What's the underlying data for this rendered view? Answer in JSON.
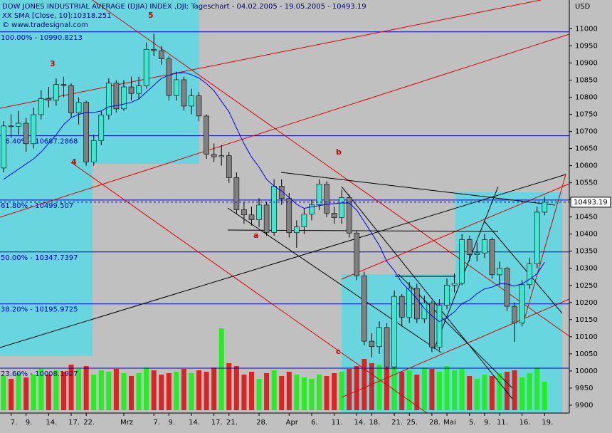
{
  "chart_data": {
    "type": "candlestick",
    "title": "DOW JONES INDUSTRIAL AVERAGE (DJIA) INDEX ,DJI; Tageschart - 04.02.2005 - 19.05.2005 - 10493.19",
    "credit": "© www.tradesignal.com",
    "unit": "USD",
    "annotations": [
      "5",
      "3",
      "4",
      "a",
      "b",
      "c"
    ],
    "categories": [
      null,
      "7.",
      null,
      "9.",
      null,
      null,
      "14.",
      null,
      null,
      "17.",
      null,
      "22.",
      null,
      null,
      null,
      null,
      "Mrz",
      null,
      null,
      null,
      "7.",
      null,
      "9.",
      null,
      null,
      "14.",
      null,
      null,
      "17.",
      null,
      "21.",
      null,
      null,
      null,
      "28.",
      null,
      null,
      null,
      "Apr",
      null,
      null,
      "6.",
      null,
      null,
      "11.",
      null,
      null,
      "14.",
      null,
      "18.",
      null,
      null,
      "21.",
      null,
      "25.",
      null,
      null,
      "28.",
      null,
      "Mai",
      null,
      null,
      "5.",
      null,
      "9.",
      null,
      "11.",
      null,
      null,
      "16.",
      null,
      null,
      "19."
    ],
    "open": [
      10593,
      10716,
      10715,
      10724,
      10664,
      10749,
      10796,
      10791,
      10837,
      10834,
      10754,
      10785,
      10611,
      10673,
      10748,
      10841,
      10766,
      10830,
      10811,
      10833,
      10940,
      10936,
      10912,
      10805,
      10851,
      10774,
      10804,
      10745,
      10633,
      10626,
      10629,
      10565,
      10471,
      10456,
      10442,
      10485,
      10405,
      10540,
      10504,
      10404,
      10421,
      10458,
      10486,
      10546,
      10461,
      10448,
      10507,
      10403,
      10278,
      10087,
      10071,
      10127,
      10012,
      10218,
      10157,
      10242,
      10152,
      10198,
      10070,
      10192,
      10251,
      10256,
      10384,
      10340,
      10345,
      10384,
      10281,
      10300,
      10189,
      10140,
      10252,
      10313,
      10464
    ],
    "high": [
      10730,
      10750,
      10760,
      10740,
      10770,
      10820,
      10830,
      10855,
      10860,
      10840,
      10800,
      10790,
      10690,
      10760,
      10855,
      10850,
      10850,
      10860,
      10860,
      10960,
      10985,
      10950,
      10920,
      10875,
      10860,
      10825,
      10815,
      10750,
      10665,
      10660,
      10640,
      10580,
      10495,
      10480,
      10505,
      10495,
      10560,
      10560,
      10520,
      10440,
      10475,
      10500,
      10560,
      10555,
      10480,
      10530,
      10515,
      10410,
      10290,
      10110,
      10145,
      10140,
      10235,
      10225,
      10260,
      10255,
      10220,
      10205,
      10210,
      10270,
      10285,
      10400,
      10395,
      10375,
      10400,
      10390,
      10320,
      10305,
      10200,
      10265,
      10330,
      10480,
      10510
    ],
    "low": [
      10580,
      10680,
      10690,
      10640,
      10650,
      10735,
      10770,
      10775,
      10800,
      10740,
      10720,
      10600,
      10600,
      10660,
      10735,
      10755,
      10760,
      10790,
      10795,
      10825,
      10920,
      10895,
      10790,
      10790,
      10760,
      10750,
      10730,
      10620,
      10610,
      10600,
      10550,
      10460,
      10430,
      10425,
      10420,
      10395,
      10395,
      10485,
      10390,
      10360,
      10400,
      10440,
      10470,
      10450,
      10430,
      10430,
      10390,
      10265,
      10075,
      10040,
      10050,
      10000,
      10005,
      10130,
      10140,
      10140,
      10140,
      10055,
      10060,
      10180,
      10230,
      10250,
      10320,
      10320,
      10330,
      10270,
      10250,
      10175,
      10085,
      10130,
      10240,
      10300,
      10455
    ],
    "close": [
      10716,
      10715,
      10724,
      10664,
      10749,
      10796,
      10791,
      10837,
      10834,
      10754,
      10785,
      10611,
      10673,
      10748,
      10841,
      10766,
      10830,
      10811,
      10833,
      10940,
      10936,
      10912,
      10805,
      10851,
      10774,
      10804,
      10745,
      10633,
      10626,
      10629,
      10565,
      10471,
      10456,
      10442,
      10485,
      10405,
      10540,
      10504,
      10404,
      10421,
      10458,
      10486,
      10546,
      10461,
      10448,
      10507,
      10403,
      10278,
      10087,
      10071,
      10127,
      10012,
      10218,
      10157,
      10242,
      10152,
      10198,
      10070,
      10192,
      10251,
      10256,
      10384,
      10340,
      10345,
      10384,
      10281,
      10300,
      10189,
      10140,
      10252,
      10313,
      10464,
      10493.19
    ],
    "up_color": "#3de8d0",
    "down_color": "#808080",
    "volume": {
      "up_color": "#22ee22",
      "down_color": "#dd2222",
      "values": [
        48,
        44,
        52,
        46,
        50,
        58,
        50,
        56,
        54,
        64,
        58,
        62,
        50,
        56,
        54,
        58,
        52,
        48,
        52,
        60,
        56,
        50,
        52,
        54,
        58,
        52,
        56,
        54,
        60,
        115,
        66,
        62,
        50,
        54,
        44,
        52,
        56,
        48,
        54,
        50,
        46,
        44,
        50,
        48,
        52,
        54,
        58,
        62,
        72,
        66,
        64,
        60,
        68,
        54,
        56,
        50,
        60,
        58,
        54,
        62,
        56,
        58,
        48,
        44,
        50,
        48,
        52,
        54,
        56,
        46,
        52,
        60,
        40
      ]
    },
    "sma": {
      "label": "XX SMA [Close, 10]:10318.251",
      "color": "#0000e0",
      "values": [
        10560,
        10575,
        10590,
        10605,
        10620,
        10640,
        10665,
        10690,
        10720,
        10740,
        10750,
        10755,
        10755,
        10760,
        10772,
        10775,
        10780,
        10785,
        10795,
        10815,
        10835,
        10855,
        10864,
        10870,
        10872,
        10866,
        10856,
        10840,
        10819,
        10788,
        10757,
        10710,
        10664,
        10625,
        10596,
        10560,
        10540,
        10526,
        10507,
        10487,
        10475,
        10480,
        10483,
        10487,
        10489,
        10491,
        10491,
        10470,
        10436,
        10402,
        10367,
        10320,
        10293,
        10258,
        10236,
        10211,
        10182,
        10161,
        10144,
        10156,
        10173,
        10197,
        10207,
        10226,
        10240,
        10245,
        10255,
        10254,
        10248,
        10255,
        10268,
        10284,
        10318.251
      ]
    },
    "fib_levels": [
      {
        "value": 10990.8213,
        "label": "100.00% - 10990.8213"
      },
      {
        "value": 10687.2868,
        "label": "76.40% - 10687.2868"
      },
      {
        "value": 10499.507,
        "label": "61.80% - 10499.507"
      },
      {
        "value": 10347.7397,
        "label": "50.00% - 10347.7397"
      },
      {
        "value": 10195.9725,
        "label": "38.20% - 10195.9725"
      },
      {
        "value": 10008.1927,
        "label": "23.60% - 10008.1927"
      }
    ],
    "fib_color": "#0000c0",
    "last_price": 10493.19,
    "ylim": [
      9877,
      11084
    ],
    "yticks": [
      9900,
      9950,
      10000,
      10050,
      10100,
      10150,
      10200,
      10250,
      10300,
      10350,
      10400,
      10450,
      10500,
      10550,
      10600,
      10650,
      10700,
      10750,
      10800,
      10850,
      10900,
      10950,
      11000
    ]
  }
}
